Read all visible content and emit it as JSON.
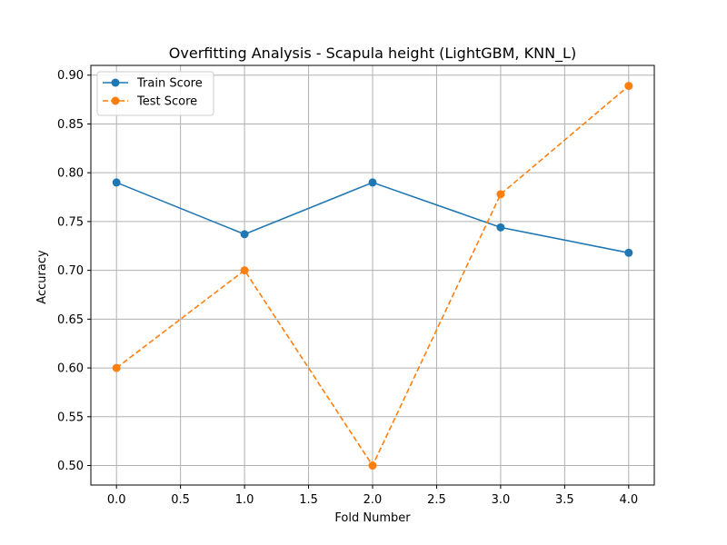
{
  "chart_data": {
    "type": "line",
    "title": "Overfitting Analysis - Scapula height (LightGBM, KNN_L)",
    "xlabel": "Fold Number",
    "ylabel": "Accuracy",
    "x": [
      0,
      1,
      2,
      3,
      4
    ],
    "xlim": [
      -0.2,
      4.2
    ],
    "ylim": [
      0.48,
      0.91
    ],
    "xticks": [
      "0.0",
      "0.5",
      "1.0",
      "1.5",
      "2.0",
      "2.5",
      "3.0",
      "3.5",
      "4.0"
    ],
    "yticks": [
      "0.50",
      "0.55",
      "0.60",
      "0.65",
      "0.70",
      "0.75",
      "0.80",
      "0.85",
      "0.90"
    ],
    "grid": true,
    "legend_position": "top-left",
    "series": [
      {
        "name": "Train Score",
        "values": [
          0.79,
          0.737,
          0.79,
          0.744,
          0.718
        ],
        "color": "#1f77b4",
        "style": "solid",
        "marker": "circle"
      },
      {
        "name": "Test Score",
        "values": [
          0.6,
          0.7,
          0.5,
          0.778,
          0.889
        ],
        "color": "#ff7f0e",
        "style": "dashed",
        "marker": "circle"
      }
    ]
  }
}
